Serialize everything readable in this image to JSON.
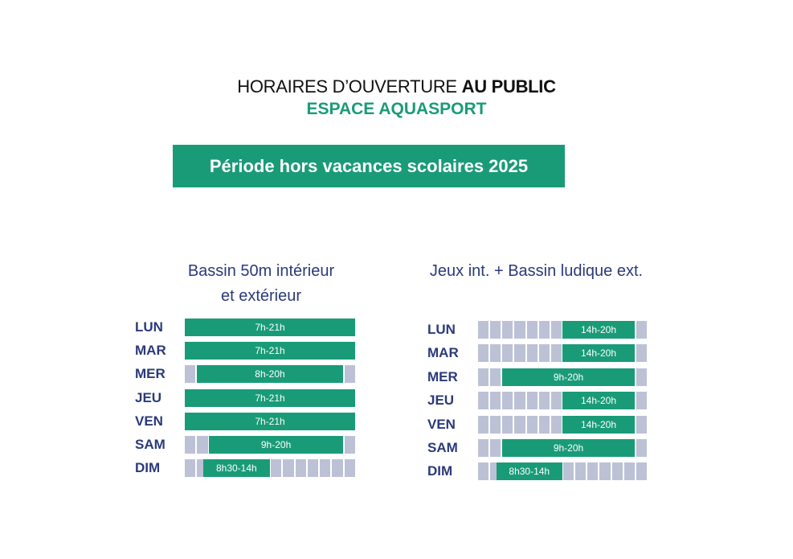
{
  "header": {
    "title_regular": "HORAIRES D’OUVERTURE",
    "title_bold": "AU PUBLIC",
    "subtitle": "ESPACE AQUASPORT"
  },
  "banner": {
    "label": "Période hors vacances scolaires 2025"
  },
  "colors": {
    "accent": "#1a9b78",
    "navy": "#2b3a7a",
    "slot": "#bcc1d6"
  },
  "schedules": [
    {
      "title_line1": "Bassin 50m intérieur",
      "title_line2": "et extérieur",
      "rows": [
        {
          "day": "LUN",
          "label": "7h-21h",
          "start": 7,
          "end": 21
        },
        {
          "day": "MAR",
          "label": "7h-21h",
          "start": 7,
          "end": 21
        },
        {
          "day": "MER",
          "label": "8h-20h",
          "start": 8,
          "end": 20
        },
        {
          "day": "JEU",
          "label": "7h-21h",
          "start": 7,
          "end": 21
        },
        {
          "day": "VEN",
          "label": "7h-21h",
          "start": 7,
          "end": 21
        },
        {
          "day": "SAM",
          "label": "9h-20h",
          "start": 9,
          "end": 20
        },
        {
          "day": "DIM",
          "label": "8h30-14h",
          "start": 8.5,
          "end": 14
        }
      ]
    },
    {
      "title_line1": "Jeux int. + Bassin ludique ext.",
      "title_line2": "",
      "rows": [
        {
          "day": "LUN",
          "label": "14h-20h",
          "start": 14,
          "end": 20
        },
        {
          "day": "MAR",
          "label": "14h-20h",
          "start": 14,
          "end": 20
        },
        {
          "day": "MER",
          "label": "9h-20h",
          "start": 9,
          "end": 20
        },
        {
          "day": "JEU",
          "label": "14h-20h",
          "start": 14,
          "end": 20
        },
        {
          "day": "VEN",
          "label": "14h-20h",
          "start": 14,
          "end": 20
        },
        {
          "day": "SAM",
          "label": "9h-20h",
          "start": 9,
          "end": 20
        },
        {
          "day": "DIM",
          "label": "8h30-14h",
          "start": 8.5,
          "end": 14
        }
      ]
    }
  ]
}
